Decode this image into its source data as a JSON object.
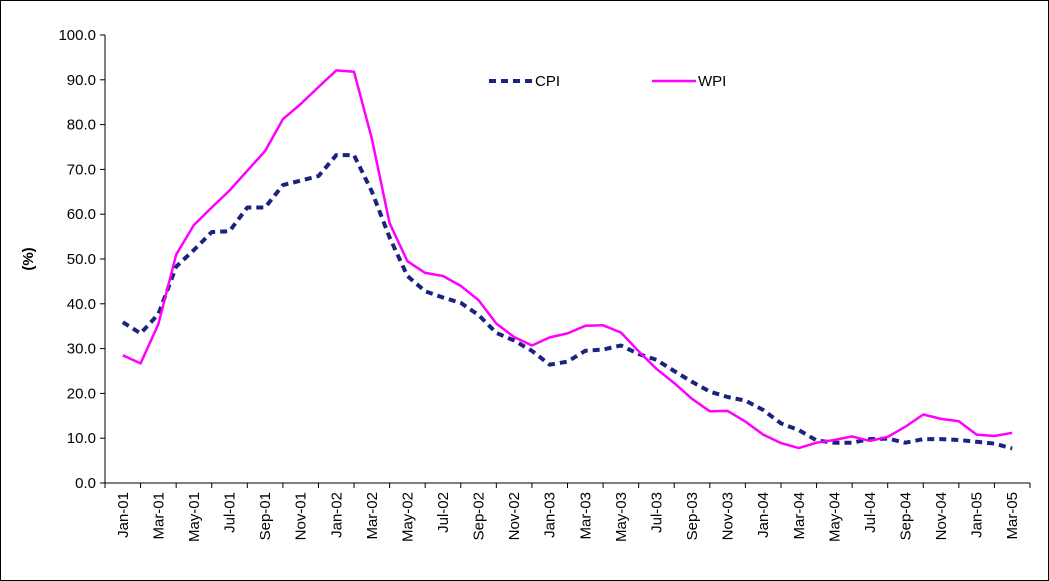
{
  "chart_data": {
    "type": "line",
    "title": "",
    "xlabel": "",
    "ylabel": "(%)",
    "ylim": [
      0,
      100
    ],
    "yticks": [
      "0.0",
      "10.0",
      "20.0",
      "30.0",
      "40.0",
      "50.0",
      "60.0",
      "70.0",
      "80.0",
      "90.0",
      "100.0"
    ],
    "grid": false,
    "legend_position": "top-center",
    "x_labels": [
      "Jan-01",
      "Mar-01",
      "May-01",
      "Jul-01",
      "Sep-01",
      "Nov-01",
      "Jan-02",
      "Mar-02",
      "May-02",
      "Jul-02",
      "Sep-02",
      "Nov-02",
      "Jan-03",
      "Mar-03",
      "May-03",
      "Jul-03",
      "Sep-03",
      "Nov-03",
      "Jan-04",
      "Mar-04",
      "May-04",
      "Jul-04",
      "Sep-04",
      "Nov-04",
      "Jan-05",
      "Mar-05"
    ],
    "x": [
      "Jan-01",
      "Feb-01",
      "Mar-01",
      "Apr-01",
      "May-01",
      "Jun-01",
      "Jul-01",
      "Aug-01",
      "Sep-01",
      "Oct-01",
      "Nov-01",
      "Dec-01",
      "Jan-02",
      "Feb-02",
      "Mar-02",
      "Apr-02",
      "May-02",
      "Jun-02",
      "Jul-02",
      "Aug-02",
      "Sep-02",
      "Oct-02",
      "Nov-02",
      "Dec-02",
      "Jan-03",
      "Feb-03",
      "Mar-03",
      "Apr-03",
      "May-03",
      "Jun-03",
      "Jul-03",
      "Aug-03",
      "Sep-03",
      "Oct-03",
      "Nov-03",
      "Dec-03",
      "Jan-04",
      "Feb-04",
      "Mar-04",
      "Apr-04",
      "May-04",
      "Jun-04",
      "Jul-04",
      "Aug-04",
      "Sep-04",
      "Oct-04",
      "Nov-04",
      "Dec-04",
      "Jan-05",
      "Feb-05",
      "Mar-05"
    ],
    "series": [
      {
        "name": "CPI",
        "color": "#1a237e",
        "style": "dashed",
        "values": [
          35.9,
          33.4,
          37.7,
          48.3,
          52.0,
          56.0,
          56.2,
          61.5,
          61.5,
          66.5,
          67.5,
          68.5,
          73.2,
          73.2,
          65.1,
          54.8,
          46.2,
          42.8,
          41.4,
          40.2,
          37.5,
          33.5,
          31.8,
          29.5,
          26.4,
          27.1,
          29.5,
          29.8,
          30.7,
          28.8,
          27.5,
          25.0,
          22.6,
          20.4,
          19.2,
          18.4,
          16.3,
          13.3,
          11.8,
          9.5,
          9.0,
          9.0,
          9.8,
          9.9,
          9.0,
          9.8,
          9.8,
          9.6,
          9.2,
          8.8,
          7.7
        ]
      },
      {
        "name": "WPI",
        "color": "#ff00ff",
        "style": "solid",
        "values": [
          28.5,
          26.7,
          35.5,
          51.0,
          57.6,
          61.5,
          65.3,
          69.7,
          74.1,
          81.2,
          84.6,
          88.4,
          92.1,
          91.8,
          76.9,
          58.0,
          49.5,
          46.9,
          46.2,
          44.0,
          40.8,
          35.6,
          32.6,
          30.7,
          32.5,
          33.4,
          35.1,
          35.2,
          33.6,
          29.4,
          25.5,
          22.3,
          18.8,
          16.0,
          16.1,
          13.7,
          10.8,
          8.9,
          7.8,
          9.0,
          9.6,
          10.4,
          9.4,
          10.3,
          12.6,
          15.3,
          14.3,
          13.8,
          10.8,
          10.5,
          11.2
        ]
      }
    ]
  }
}
